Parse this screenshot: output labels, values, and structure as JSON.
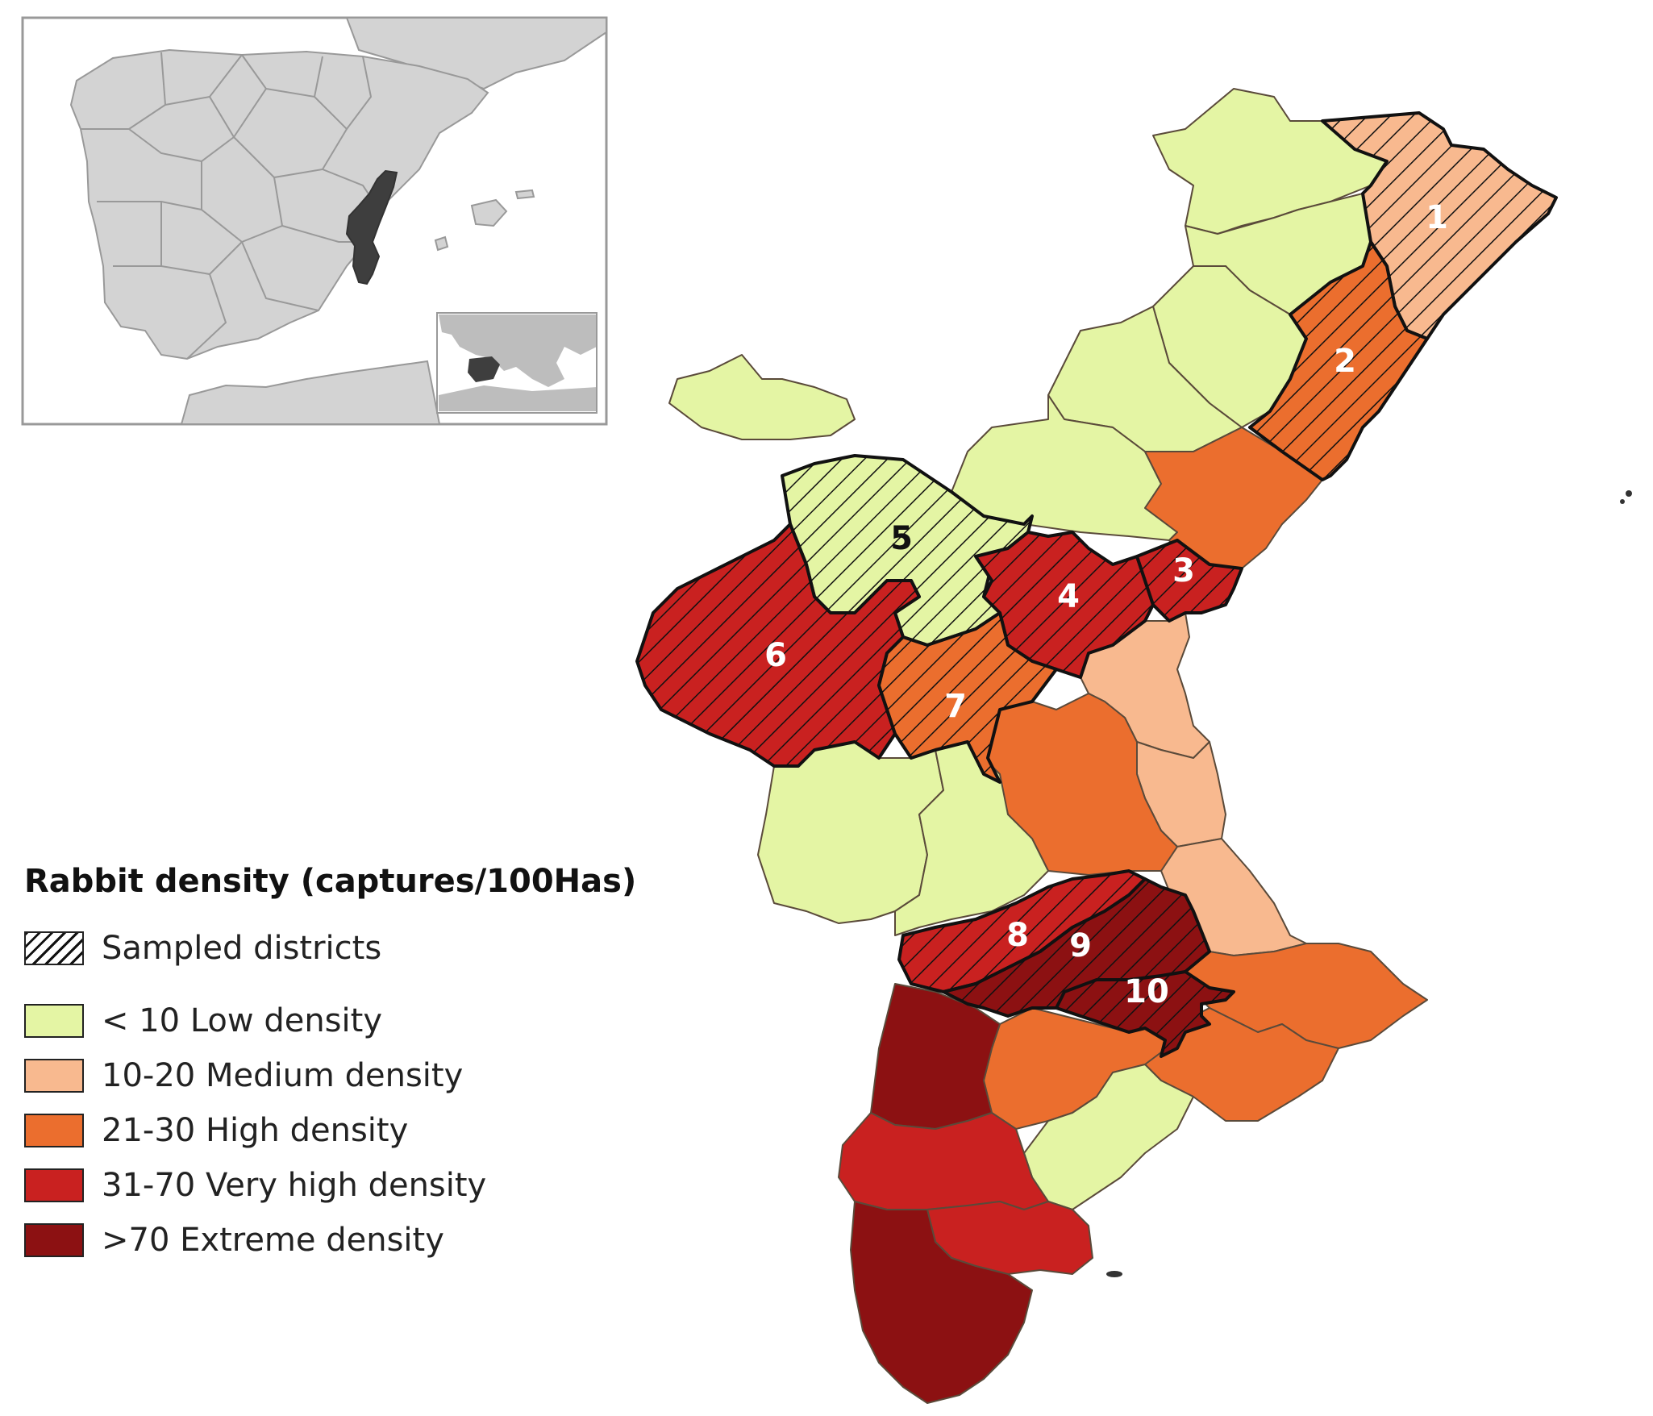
{
  "legend": {
    "title": "Rabbit density (captures/100Has)",
    "sampled_label": "Sampled districts",
    "classes": [
      {
        "label": "< 10 Low density",
        "color": "#E4F5A4"
      },
      {
        "label": "10-20 Medium density",
        "color": "#F8B98F"
      },
      {
        "label": "21-30 High density",
        "color": "#EB6E2E"
      },
      {
        "label": "31-70 Very high density",
        "color": "#C92120"
      },
      {
        "label": ">70 Extreme density",
        "color": "#8C1112"
      }
    ]
  },
  "colors": {
    "spain_base": "#D3D3D3",
    "highlight_region": "#3E3E3E",
    "sea": "#FFFFFF",
    "district_border": "#5A4A3A",
    "sampled_border": "#111111"
  },
  "districts": [
    {
      "number": "1",
      "density_class": "10-20 Medium density"
    },
    {
      "number": "2",
      "density_class": "21-30 High density"
    },
    {
      "number": "3",
      "density_class": "31-70 Very high density"
    },
    {
      "number": "4",
      "density_class": "31-70 Very high density"
    },
    {
      "number": "5",
      "density_class": "< 10 Low density"
    },
    {
      "number": "6",
      "density_class": "31-70 Very high density"
    },
    {
      "number": "7",
      "density_class": "21-30 High density"
    },
    {
      "number": "8",
      "density_class": "31-70 Very high density"
    },
    {
      "number": "9",
      "density_class": ">70 Extreme density"
    },
    {
      "number": "10",
      "density_class": ">70 Extreme density"
    }
  ]
}
